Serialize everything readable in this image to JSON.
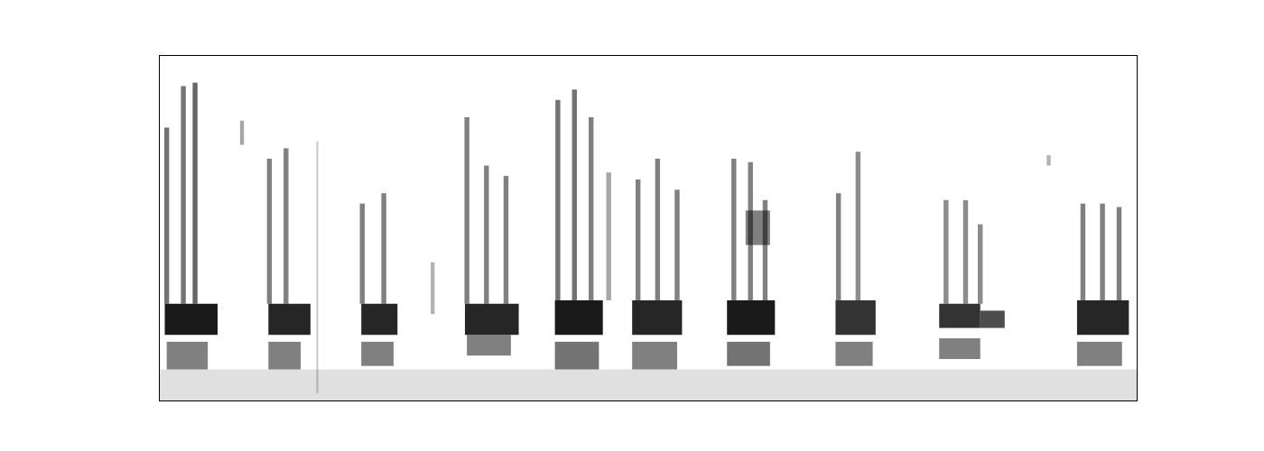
{
  "chart_data": {
    "type": "heatmap",
    "xlim": [
      0,
      10
    ],
    "ylim": [
      0,
      10
    ],
    "xticks": [],
    "yticks": [],
    "tick_labels": false,
    "grid": false,
    "color": "#000000",
    "level_range": [
      0,
      1
    ],
    "cells": [
      {
        "t0": 0,
        "t1": 10,
        "f0": 0,
        "f1": 0.9,
        "level": 0.12
      },
      {
        "t0": 0.06,
        "t1": 0.6,
        "f0": 1.9,
        "f1": 2.8,
        "level": 0.9
      },
      {
        "t0": 0.08,
        "t1": 0.5,
        "f0": 0.9,
        "f1": 1.7,
        "level": 0.5
      },
      {
        "t0": 0.055,
        "t1": 0.105,
        "f0": 2.8,
        "f1": 7.9,
        "level": 0.55
      },
      {
        "t0": 0.225,
        "t1": 0.275,
        "f0": 2.8,
        "f1": 9.1,
        "level": 0.55
      },
      {
        "t0": 0.345,
        "t1": 0.395,
        "f0": 2.8,
        "f1": 9.2,
        "level": 0.6
      },
      {
        "t0": 0.83,
        "t1": 0.87,
        "f0": 7.4,
        "f1": 8.1,
        "level": 0.35
      },
      {
        "t0": 1.12,
        "t1": 1.55,
        "f0": 1.9,
        "f1": 2.8,
        "level": 0.85
      },
      {
        "t0": 1.12,
        "t1": 1.45,
        "f0": 0.9,
        "f1": 1.7,
        "level": 0.5
      },
      {
        "t0": 1.105,
        "t1": 1.155,
        "f0": 2.8,
        "f1": 7.0,
        "level": 0.5
      },
      {
        "t0": 1.275,
        "t1": 1.325,
        "f0": 2.8,
        "f1": 7.3,
        "level": 0.5
      },
      {
        "t0": 1.61,
        "t1": 1.63,
        "f0": 0.2,
        "f1": 7.5,
        "level": 0.2
      },
      {
        "t0": 2.07,
        "t1": 2.44,
        "f0": 1.9,
        "f1": 2.8,
        "level": 0.85
      },
      {
        "t0": 2.07,
        "t1": 2.4,
        "f0": 1.0,
        "f1": 1.7,
        "level": 0.5
      },
      {
        "t0": 2.055,
        "t1": 2.105,
        "f0": 2.8,
        "f1": 5.7,
        "level": 0.5
      },
      {
        "t0": 2.275,
        "t1": 2.325,
        "f0": 2.8,
        "f1": 6.0,
        "level": 0.5
      },
      {
        "t0": 2.78,
        "t1": 2.82,
        "f0": 2.5,
        "f1": 4.0,
        "level": 0.3
      },
      {
        "t0": 3.13,
        "t1": 3.68,
        "f0": 1.9,
        "f1": 2.8,
        "level": 0.85
      },
      {
        "t0": 3.15,
        "t1": 3.6,
        "f0": 1.3,
        "f1": 1.9,
        "level": 0.5
      },
      {
        "t0": 3.125,
        "t1": 3.175,
        "f0": 2.8,
        "f1": 8.2,
        "level": 0.5
      },
      {
        "t0": 3.325,
        "t1": 3.375,
        "f0": 2.8,
        "f1": 6.8,
        "level": 0.5
      },
      {
        "t0": 3.525,
        "t1": 3.575,
        "f0": 2.8,
        "f1": 6.5,
        "level": 0.5
      },
      {
        "t0": 4.05,
        "t1": 4.54,
        "f0": 1.9,
        "f1": 2.9,
        "level": 0.9
      },
      {
        "t0": 4.05,
        "t1": 4.5,
        "f0": 0.9,
        "f1": 1.7,
        "level": 0.55
      },
      {
        "t0": 4.055,
        "t1": 4.105,
        "f0": 2.9,
        "f1": 8.7,
        "level": 0.55
      },
      {
        "t0": 4.225,
        "t1": 4.275,
        "f0": 2.9,
        "f1": 9.0,
        "level": 0.55
      },
      {
        "t0": 4.395,
        "t1": 4.445,
        "f0": 2.9,
        "f1": 8.2,
        "level": 0.5
      },
      {
        "t0": 4.575,
        "t1": 4.625,
        "f0": 2.9,
        "f1": 6.6,
        "level": 0.35
      },
      {
        "t0": 4.84,
        "t1": 5.35,
        "f0": 1.9,
        "f1": 2.9,
        "level": 0.85
      },
      {
        "t0": 4.84,
        "t1": 5.3,
        "f0": 0.9,
        "f1": 1.7,
        "level": 0.5
      },
      {
        "t0": 4.875,
        "t1": 4.925,
        "f0": 2.9,
        "f1": 6.4,
        "level": 0.5
      },
      {
        "t0": 5.075,
        "t1": 5.125,
        "f0": 2.9,
        "f1": 7.0,
        "level": 0.5
      },
      {
        "t0": 5.275,
        "t1": 5.325,
        "f0": 2.9,
        "f1": 6.1,
        "level": 0.5
      },
      {
        "t0": 5.81,
        "t1": 6.3,
        "f0": 1.9,
        "f1": 2.9,
        "level": 0.9
      },
      {
        "t0": 5.81,
        "t1": 6.25,
        "f0": 1.0,
        "f1": 1.7,
        "level": 0.55
      },
      {
        "t0": 5.855,
        "t1": 5.905,
        "f0": 2.9,
        "f1": 7.0,
        "level": 0.5
      },
      {
        "t0": 6.025,
        "t1": 6.075,
        "f0": 2.9,
        "f1": 6.9,
        "level": 0.5
      },
      {
        "t0": 6.175,
        "t1": 6.225,
        "f0": 2.9,
        "f1": 5.8,
        "level": 0.5
      },
      {
        "t0": 6.0,
        "t1": 6.25,
        "f0": 4.5,
        "f1": 5.5,
        "level": 0.5
      },
      {
        "t0": 6.92,
        "t1": 7.33,
        "f0": 1.9,
        "f1": 2.9,
        "level": 0.8
      },
      {
        "t0": 6.92,
        "t1": 7.3,
        "f0": 1.0,
        "f1": 1.7,
        "level": 0.5
      },
      {
        "t0": 6.925,
        "t1": 6.975,
        "f0": 2.9,
        "f1": 6.0,
        "level": 0.5
      },
      {
        "t0": 7.125,
        "t1": 7.175,
        "f0": 2.9,
        "f1": 7.2,
        "level": 0.45
      },
      {
        "t0": 7.98,
        "t1": 8.4,
        "f0": 2.1,
        "f1": 2.8,
        "level": 0.8
      },
      {
        "t0": 8.4,
        "t1": 8.65,
        "f0": 2.1,
        "f1": 2.6,
        "level": 0.7
      },
      {
        "t0": 7.98,
        "t1": 8.4,
        "f0": 1.2,
        "f1": 1.8,
        "level": 0.5
      },
      {
        "t0": 8.025,
        "t1": 8.075,
        "f0": 2.8,
        "f1": 5.8,
        "level": 0.45
      },
      {
        "t0": 8.225,
        "t1": 8.275,
        "f0": 2.8,
        "f1": 5.8,
        "level": 0.45
      },
      {
        "t0": 8.375,
        "t1": 8.425,
        "f0": 2.8,
        "f1": 5.1,
        "level": 0.45
      },
      {
        "t0": 9.08,
        "t1": 9.12,
        "f0": 6.8,
        "f1": 7.1,
        "level": 0.3
      },
      {
        "t0": 9.39,
        "t1": 9.92,
        "f0": 1.9,
        "f1": 2.9,
        "level": 0.85
      },
      {
        "t0": 9.39,
        "t1": 9.85,
        "f0": 1.0,
        "f1": 1.7,
        "level": 0.5
      },
      {
        "t0": 9.425,
        "t1": 9.475,
        "f0": 2.9,
        "f1": 5.7,
        "level": 0.5
      },
      {
        "t0": 9.625,
        "t1": 9.675,
        "f0": 2.9,
        "f1": 5.7,
        "level": 0.5
      },
      {
        "t0": 9.795,
        "t1": 9.845,
        "f0": 2.9,
        "f1": 5.6,
        "level": 0.5
      }
    ]
  }
}
